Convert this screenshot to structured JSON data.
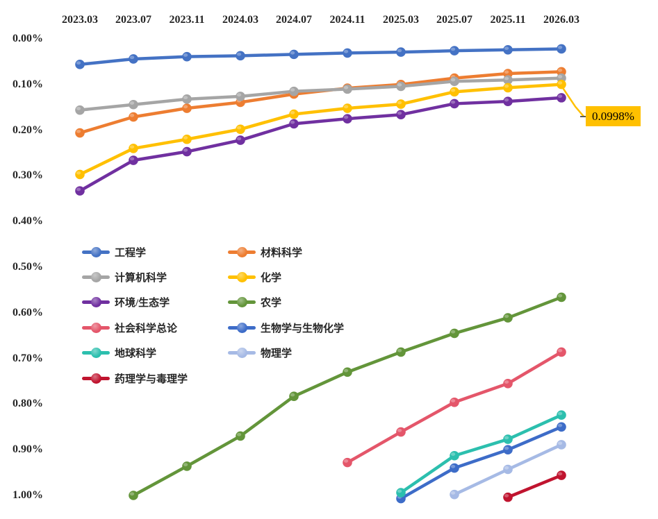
{
  "chart_data": {
    "type": "line",
    "title": "",
    "categories": [
      "2023.03",
      "2023.07",
      "2023.11",
      "2024.03",
      "2024.07",
      "2024.11",
      "2025.03",
      "2025.07",
      "2025.11",
      "2026.03"
    ],
    "y_axis": {
      "tick_labels": [
        "0.00%",
        "0.10%",
        "0.20%",
        "0.30%",
        "0.40%",
        "0.50%",
        "0.60%",
        "0.70%",
        "0.80%",
        "0.90%",
        "1.00%"
      ],
      "min_value": 0.0,
      "max_value": 1.0,
      "unit": "%",
      "direction": "inverted (0% at top, 1% at bottom)"
    },
    "x_axis_position": "top",
    "grid": false,
    "legend_position": "inside middle-left, two columns",
    "series": [
      {
        "id": "engineering",
        "name": "工程学",
        "color": "#4472C4",
        "values": [
          0.056,
          0.044,
          0.039,
          0.037,
          0.034,
          0.031,
          0.029,
          0.026,
          0.024,
          0.022
        ]
      },
      {
        "id": "materials-science",
        "name": "材料科学",
        "color": "#ED7D31",
        "values": [
          0.206,
          0.171,
          0.152,
          0.139,
          0.121,
          0.108,
          0.1,
          0.086,
          0.076,
          0.072
        ]
      },
      {
        "id": "computer-science",
        "name": "计算机科学",
        "color": "#A5A5A5",
        "values": [
          0.156,
          0.144,
          0.132,
          0.126,
          0.115,
          0.11,
          0.104,
          0.093,
          0.09,
          0.086
        ]
      },
      {
        "id": "chemistry",
        "name": "化学",
        "color": "#FFC000",
        "values": [
          0.297,
          0.24,
          0.22,
          0.198,
          0.165,
          0.152,
          0.143,
          0.116,
          0.107,
          0.0998
        ]
      },
      {
        "id": "environment-ecology",
        "name": "环境/生态学",
        "color": "#7030A0",
        "values": [
          0.333,
          0.266,
          0.247,
          0.222,
          0.186,
          0.175,
          0.166,
          0.142,
          0.137,
          0.129
        ]
      },
      {
        "id": "agronomy",
        "name": "农学",
        "color": "#63953A",
        "values": [
          null,
          1.0,
          0.936,
          0.87,
          0.783,
          0.73,
          0.686,
          0.645,
          0.611,
          0.566
        ]
      },
      {
        "id": "social-sciences-general",
        "name": "社会科学总论",
        "color": "#E4566A",
        "values": [
          null,
          null,
          null,
          null,
          null,
          0.928,
          0.861,
          0.796,
          0.755,
          0.686
        ]
      },
      {
        "id": "biology-biochemistry",
        "name": "生物学与生物化学",
        "color": "#3D6CC8",
        "values": [
          null,
          null,
          null,
          null,
          null,
          null,
          1.007,
          0.94,
          0.9,
          0.85
        ]
      },
      {
        "id": "geosciences",
        "name": "地球科学",
        "color": "#2CBFAE",
        "values": [
          null,
          null,
          null,
          null,
          null,
          null,
          0.994,
          0.913,
          0.877,
          0.824
        ]
      },
      {
        "id": "physics",
        "name": "物理学",
        "color": "#A6BAE5",
        "values": [
          null,
          null,
          null,
          null,
          null,
          null,
          null,
          0.998,
          0.943,
          0.889
        ]
      },
      {
        "id": "pharmacology-toxicology",
        "name": "药理学与毒理学",
        "color": "#C0142F",
        "values": [
          null,
          null,
          null,
          null,
          null,
          null,
          null,
          null,
          1.004,
          0.956
        ]
      }
    ],
    "annotation": {
      "text": "0.0998%",
      "bg_color": "#FFC000",
      "text_color": "#000000",
      "points_to": {
        "series": "化学",
        "category": "2026.03"
      }
    }
  }
}
